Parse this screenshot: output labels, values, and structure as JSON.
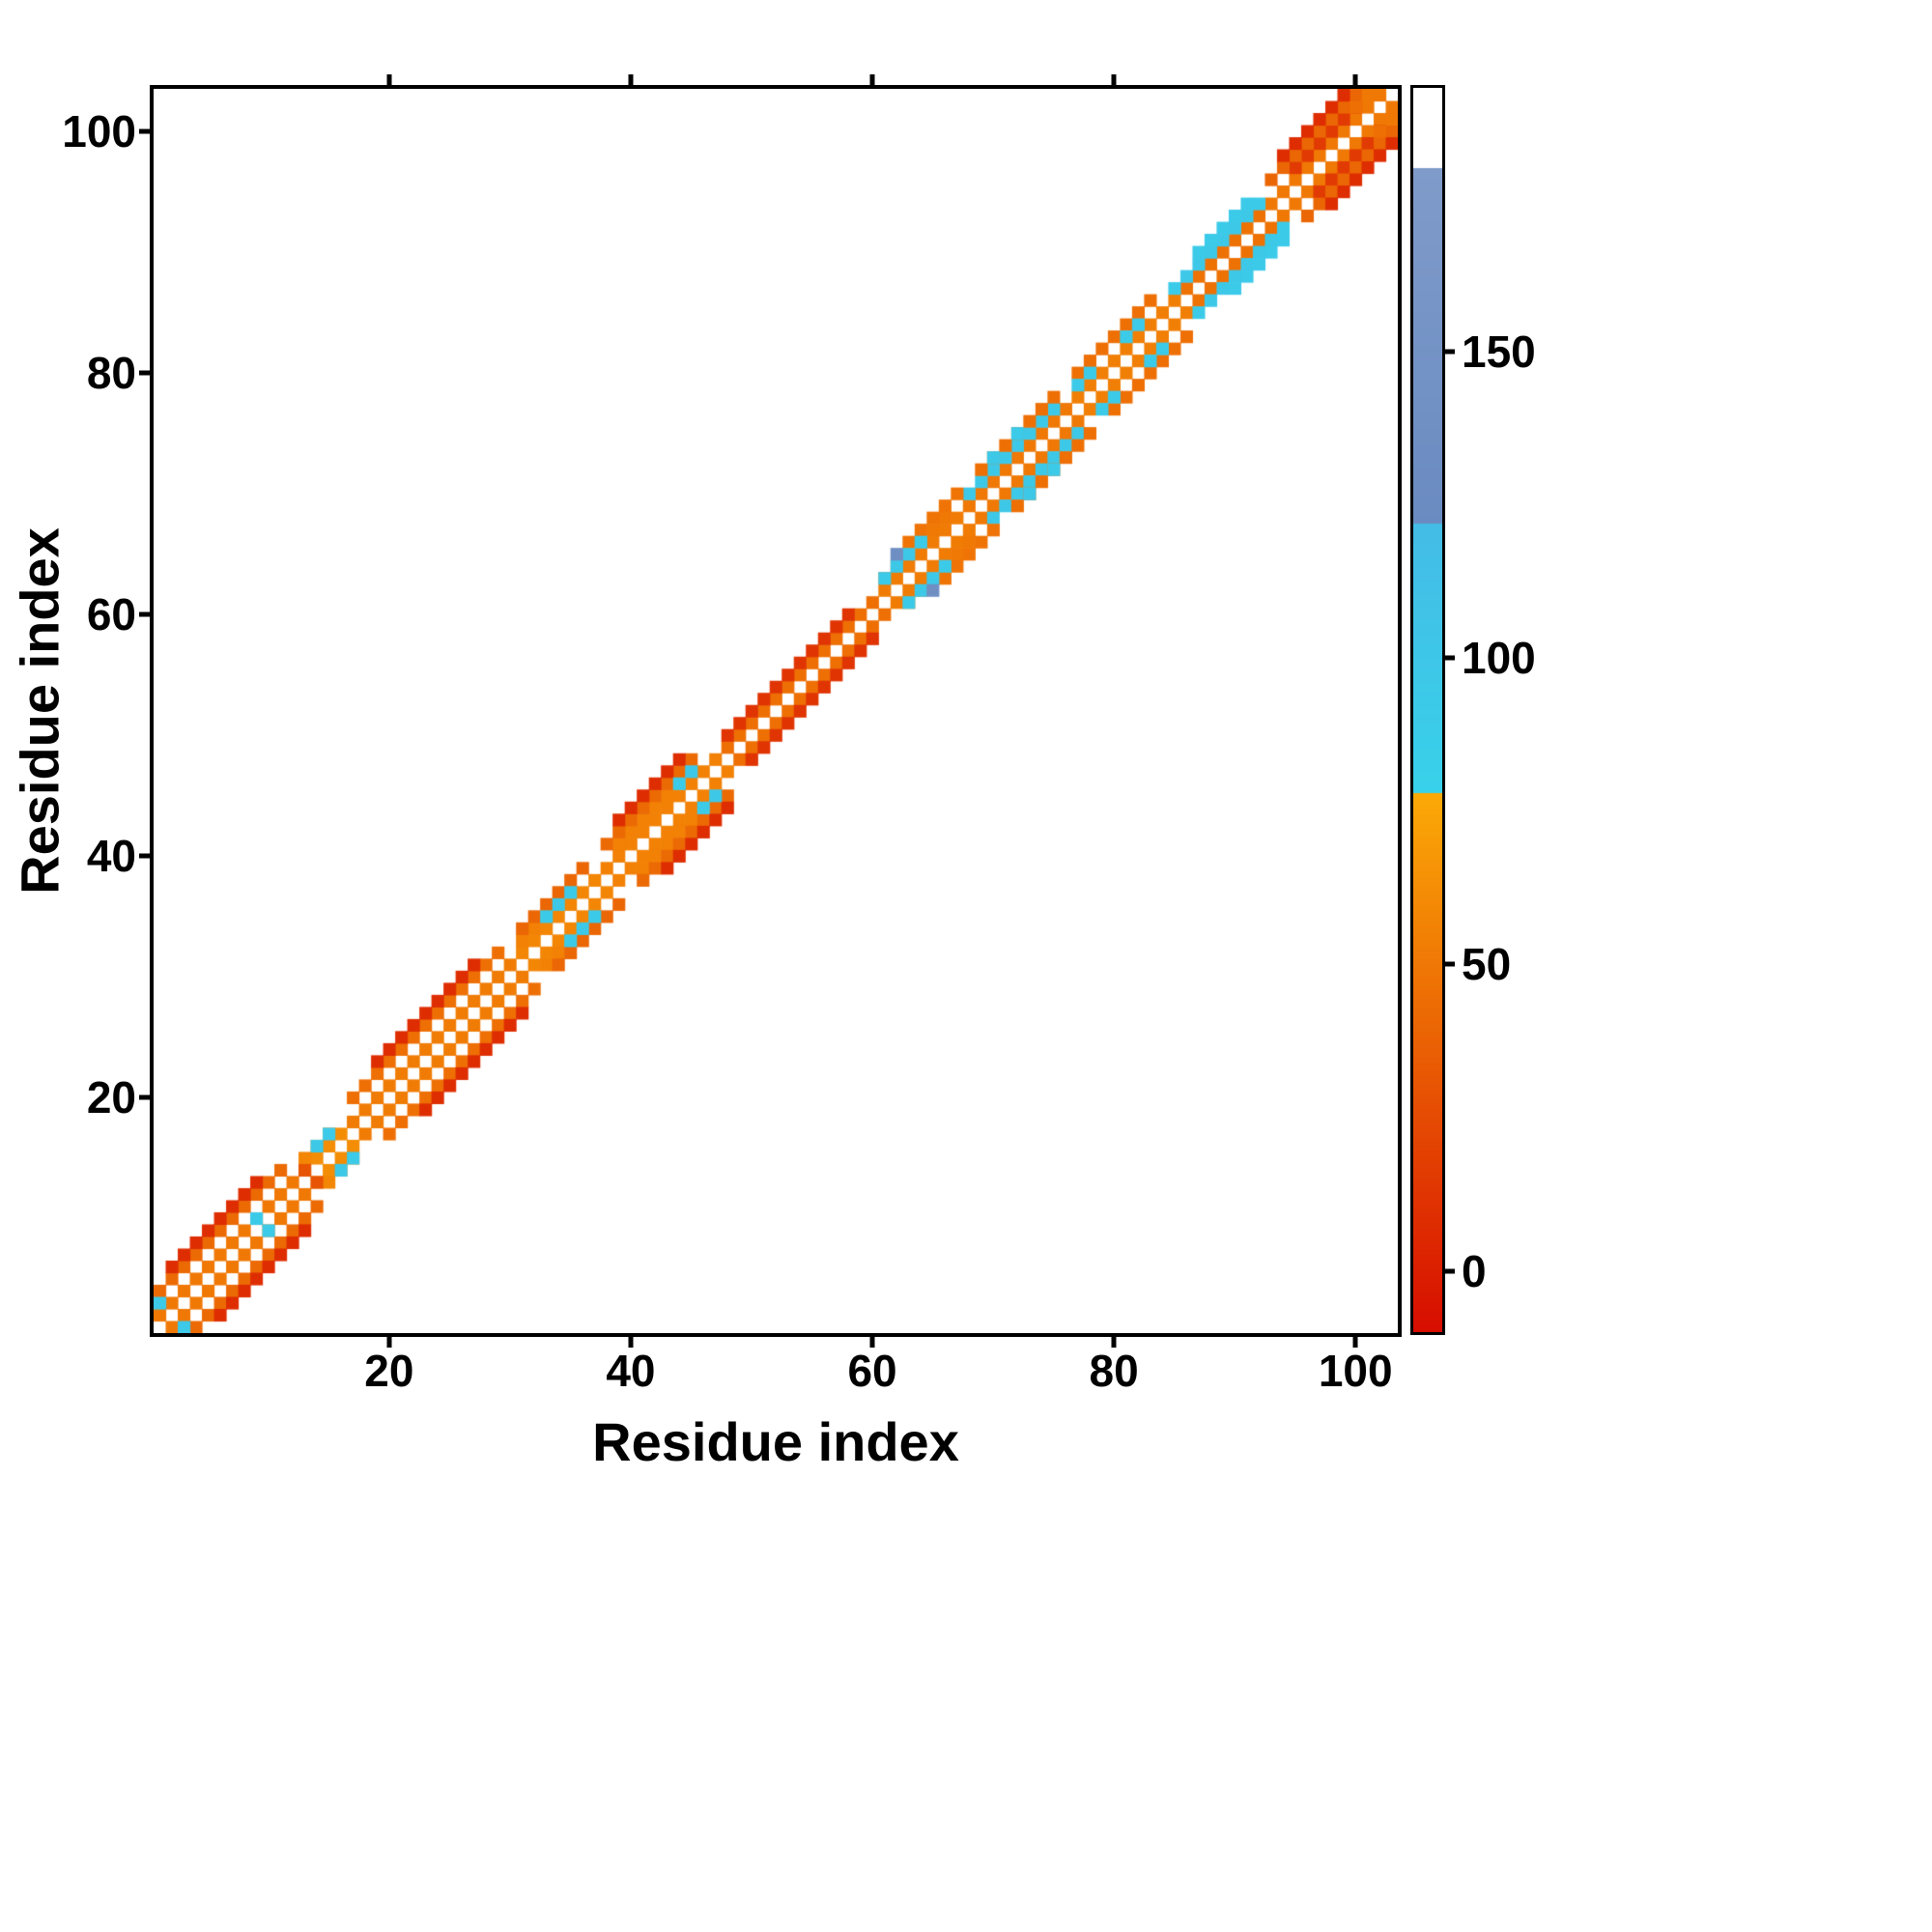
{
  "figure": {
    "background": "#ffffff",
    "frame_color": "#000000"
  },
  "chart_data": {
    "type": "heatmap",
    "title": "",
    "xlabel": "Residue index",
    "ylabel": "Residue index",
    "n_residues": 103,
    "xlim": [
      1,
      103
    ],
    "ylim": [
      1,
      103
    ],
    "grid": false,
    "x_ticks": [
      20,
      40,
      60,
      80,
      100
    ],
    "y_ticks": [
      20,
      40,
      60,
      80,
      100
    ],
    "colorbar": {
      "position": "right",
      "ticks": [
        0,
        50,
        100,
        150
      ],
      "vmin": -10,
      "vmax": 193
    },
    "color_scale": {
      "segments": [
        {
          "from": -10,
          "to": 78,
          "from_color": "#d70d00",
          "to_color": "#fbaa07"
        },
        {
          "from": 78,
          "to": 122,
          "from_color": "#38d1ea",
          "to_color": "#44bce6"
        },
        {
          "from": 122,
          "to": 180,
          "from_color": "#6a8bc1",
          "to_color": "#7f9bca"
        },
        {
          "from": 180,
          "to": 193,
          "from_color": "#ffffff",
          "to_color": "#ffffff"
        }
      ]
    },
    "band_segments": [
      {
        "offset": 1,
        "from": 1,
        "to": 12,
        "value": 50
      },
      {
        "offset": 1,
        "from": 13,
        "to": 16,
        "value": 62
      },
      {
        "offset": 1,
        "from": 17,
        "to": 30,
        "value": 52
      },
      {
        "offset": 1,
        "from": 31,
        "to": 37,
        "value": 58
      },
      {
        "offset": 1,
        "from": 38,
        "to": 47,
        "value": 55
      },
      {
        "offset": 1,
        "from": 48,
        "to": 60,
        "value": 45
      },
      {
        "offset": 1,
        "from": 61,
        "to": 67,
        "value": 52
      },
      {
        "offset": 1,
        "from": 68,
        "to": 76,
        "value": 50
      },
      {
        "offset": 1,
        "from": 77,
        "to": 85,
        "value": 54
      },
      {
        "offset": 1,
        "from": 86,
        "to": 92,
        "value": 46
      },
      {
        "offset": 1,
        "from": 93,
        "to": 102,
        "value": 50
      },
      {
        "offset": 2,
        "from": 13,
        "to": 15,
        "value": 58
      },
      {
        "offset": 2,
        "from": 31,
        "to": 35,
        "value": 55
      },
      {
        "offset": 2,
        "from": 39,
        "to": 45,
        "value": 55
      },
      {
        "offset": 2,
        "from": 48,
        "to": 58,
        "value": 12
      },
      {
        "offset": 2,
        "from": 61,
        "to": 66,
        "value": 50
      },
      {
        "offset": 2,
        "from": 68,
        "to": 75,
        "value": 96
      },
      {
        "offset": 2,
        "from": 86,
        "to": 91,
        "value": 96
      },
      {
        "offset": 2,
        "from": 95,
        "to": 100,
        "value": 15
      },
      {
        "offset": 3,
        "from": 1,
        "to": 11,
        "value": 42
      },
      {
        "offset": 3,
        "from": 17,
        "to": 29,
        "value": 45
      },
      {
        "offset": 3,
        "from": 31,
        "to": 36,
        "value": 40
      },
      {
        "offset": 3,
        "from": 38,
        "to": 45,
        "value": 42
      },
      {
        "offset": 3,
        "from": 63,
        "to": 67,
        "value": 48
      },
      {
        "offset": 3,
        "from": 69,
        "to": 75,
        "value": 45
      },
      {
        "offset": 3,
        "from": 77,
        "to": 83,
        "value": 45
      },
      {
        "offset": 3,
        "from": 87,
        "to": 91,
        "value": 92
      },
      {
        "offset": 3,
        "from": 93,
        "to": 100,
        "value": 40
      },
      {
        "offset": 4,
        "from": 2,
        "to": 9,
        "value": 8
      },
      {
        "offset": 4,
        "from": 19,
        "to": 27,
        "value": 8
      },
      {
        "offset": 4,
        "from": 39,
        "to": 44,
        "value": 8
      },
      {
        "offset": 4,
        "from": 94,
        "to": 99,
        "value": 8
      }
    ],
    "cells": [
      [
        1,
        3,
        95
      ],
      [
        9,
        10,
        92
      ],
      [
        13,
        14,
        30
      ],
      [
        14,
        16,
        96
      ],
      [
        15,
        17,
        92
      ],
      [
        33,
        35,
        90
      ],
      [
        34,
        36,
        96
      ],
      [
        35,
        37,
        92
      ],
      [
        44,
        46,
        90
      ],
      [
        45,
        47,
        96
      ],
      [
        61,
        63,
        90
      ],
      [
        62,
        64,
        96
      ],
      [
        63,
        65,
        96
      ],
      [
        64,
        66,
        92
      ],
      [
        62,
        65,
        135
      ],
      [
        70,
        73,
        96
      ],
      [
        72,
        75,
        92
      ],
      [
        77,
        79,
        95
      ],
      [
        78,
        80,
        92
      ],
      [
        81,
        83,
        90
      ],
      [
        82,
        84,
        95
      ],
      [
        85,
        87,
        90
      ],
      [
        92,
        94,
        90
      ],
      [
        100,
        102,
        45
      ],
      [
        101,
        103,
        50
      ]
    ]
  }
}
